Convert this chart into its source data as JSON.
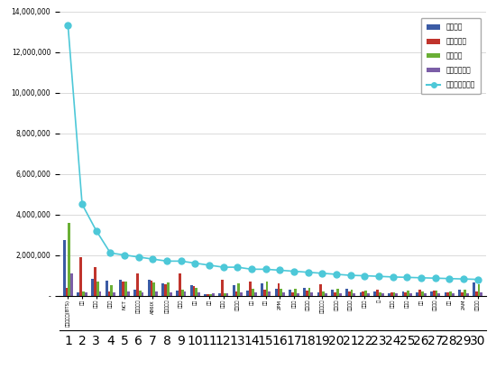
{
  "x_labels": [
    "방탄소년단(BTS)",
    "지민",
    "제이홉",
    "사도구",
    "NCT",
    "슈퍼주니어",
    "AB6IX",
    "얠스파이크",
    "지빅스",
    "행숙",
    "현다",
    "다이아",
    "아스트로",
    "모론",
    "도버",
    "2PM",
    "용우시",
    "멜로로히",
    "에이툼비즈",
    "에이티즈",
    "스플래쉬",
    "에이다",
    "주",
    "잭스구",
    "포르테",
    "상시",
    "보이다름",
    "상시",
    "2AM",
    "아모레이"
  ],
  "participation": [
    2750000,
    180000,
    820000,
    750000,
    780000,
    280000,
    800000,
    600000,
    250000,
    500000,
    50000,
    100000,
    500000,
    250000,
    600000,
    350000,
    280000,
    380000,
    150000,
    300000,
    350000,
    180000,
    200000,
    100000,
    220000,
    150000,
    220000,
    180000,
    280000,
    650000
  ],
  "media": [
    380000,
    1900000,
    1400000,
    200000,
    700000,
    1100000,
    750000,
    550000,
    1100000,
    450000,
    80000,
    800000,
    200000,
    700000,
    300000,
    600000,
    180000,
    250000,
    550000,
    150000,
    200000,
    200000,
    300000,
    180000,
    150000,
    280000,
    250000,
    180000,
    180000,
    200000
  ],
  "communication": [
    3600000,
    220000,
    700000,
    500000,
    700000,
    250000,
    650000,
    650000,
    300000,
    400000,
    80000,
    120000,
    600000,
    350000,
    700000,
    350000,
    350000,
    400000,
    200000,
    350000,
    300000,
    250000,
    150000,
    150000,
    250000,
    200000,
    250000,
    200000,
    300000,
    550000
  ],
  "community": [
    1100000,
    150000,
    200000,
    150000,
    200000,
    150000,
    200000,
    150000,
    200000,
    150000,
    100000,
    100000,
    150000,
    150000,
    200000,
    150000,
    100000,
    150000,
    100000,
    100000,
    100000,
    100000,
    100000,
    100000,
    100000,
    100000,
    100000,
    100000,
    100000,
    150000
  ],
  "brand": [
    13300000,
    4500000,
    3200000,
    2100000,
    2000000,
    1900000,
    1800000,
    1700000,
    1700000,
    1600000,
    1500000,
    1400000,
    1400000,
    1300000,
    1300000,
    1250000,
    1200000,
    1150000,
    1100000,
    1050000,
    1000000,
    980000,
    950000,
    920000,
    900000,
    880000,
    860000,
    840000,
    820000,
    800000
  ],
  "bar_colors": [
    "#3B5BA5",
    "#C0342C",
    "#6AAF35",
    "#7B5EA7"
  ],
  "line_color": "#4DC8D8",
  "legend_labels": [
    "함여지수",
    "미디어지수",
    "소통지수",
    "커뮤니티지수",
    "브랜드평판지수"
  ],
  "ylim": [
    0,
    14000000
  ],
  "ytick_vals": [
    0,
    2000000,
    4000000,
    6000000,
    8000000,
    10000000,
    12000000,
    14000000
  ],
  "background_color": "#FFFFFF"
}
